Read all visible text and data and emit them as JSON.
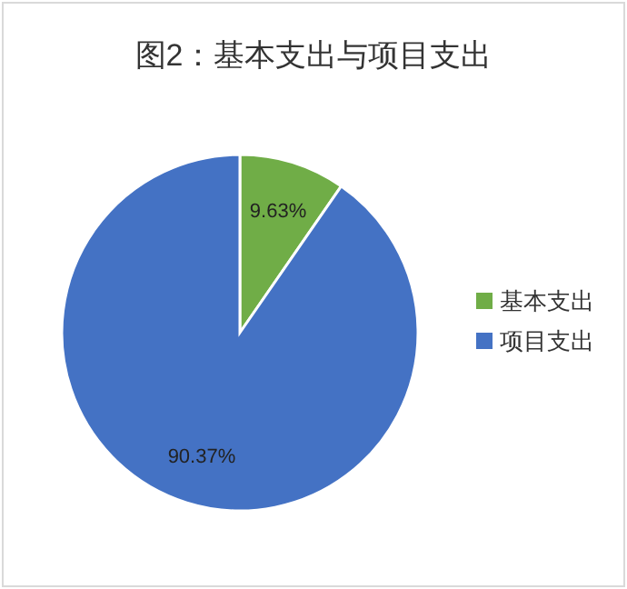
{
  "chart_data": {
    "type": "pie",
    "title": "图2：基本支出与项目支出",
    "categories": [
      "基本支出",
      "项目支出"
    ],
    "values": [
      9.63,
      90.37
    ],
    "colors": [
      "#70ad47",
      "#4472c4"
    ],
    "value_labels": [
      "9.63%",
      "90.37%"
    ],
    "legend": "right"
  }
}
